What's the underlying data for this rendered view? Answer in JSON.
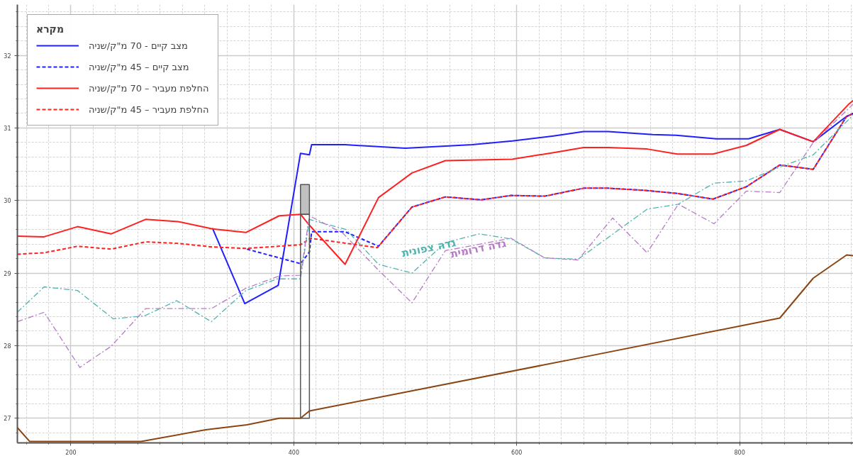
{
  "chart_data": {
    "type": "line",
    "xlim": [
      152,
      902
    ],
    "ylim": [
      26.66,
      32.7
    ],
    "xticks": [
      200,
      400,
      600,
      800
    ],
    "yticks": [
      27,
      28,
      29,
      30,
      31,
      32
    ],
    "grid": true,
    "legend": "top left",
    "legend_title": "מקרא",
    "series": [
      {
        "name": "מצב קיים - 70 מ\"ק/שניה",
        "color": "#2020ff",
        "line_style": "solid",
        "x": [
          327,
          356,
          386,
          406,
          414,
          416,
          446,
          500,
          560,
          596,
          633,
          660,
          682,
          722,
          743,
          779,
          808,
          836,
          866,
          896,
          902
        ],
        "values": [
          29.62,
          28.58,
          28.83,
          30.65,
          30.63,
          30.77,
          30.77,
          30.72,
          30.77,
          30.82,
          30.89,
          30.95,
          30.95,
          30.91,
          30.9,
          30.85,
          30.85,
          30.98,
          30.81,
          31.16,
          31.2
        ]
      },
      {
        "name": "מצב קיים – 45 מ\"ק/שניה",
        "color": "#2020ff",
        "line_style": "dashed",
        "x": [
          358,
          406,
          414,
          416,
          446,
          476,
          506,
          536,
          568,
          595,
          625,
          660,
          682,
          715,
          743,
          776,
          806,
          836,
          866,
          896,
          902
        ],
        "values": [
          29.33,
          29.13,
          29.29,
          29.57,
          29.57,
          29.37,
          29.91,
          30.05,
          30.01,
          30.07,
          30.06,
          30.17,
          30.17,
          30.14,
          30.1,
          30.02,
          30.19,
          30.49,
          30.43,
          31.16,
          31.2
        ]
      },
      {
        "name": "החלפת מעביר – 70 מ\"ק/שניה",
        "color": "#ff2020",
        "line_style": "solid",
        "x": [
          152,
          176,
          206,
          236,
          267,
          296,
          327,
          357,
          387,
          406,
          414,
          446,
          476,
          506,
          536,
          596,
          633,
          660,
          682,
          717,
          744,
          776,
          806,
          836,
          866,
          898,
          902
        ],
        "values": [
          29.51,
          29.5,
          29.64,
          29.54,
          29.74,
          29.71,
          29.61,
          29.56,
          29.79,
          29.81,
          29.66,
          29.12,
          30.04,
          30.38,
          30.55,
          30.57,
          30.66,
          30.73,
          30.73,
          30.71,
          30.64,
          30.64,
          30.76,
          30.98,
          30.81,
          31.33,
          31.38
        ]
      },
      {
        "name": "החלפת מעביר – 45 מ\"ק/שניה",
        "color": "#ff2020",
        "line_style": "dashed",
        "x": [
          152,
          176,
          206,
          236,
          267,
          296,
          327,
          357,
          406,
          415,
          475,
          506,
          536,
          568,
          595,
          625,
          660,
          682,
          715,
          743,
          776,
          806,
          836,
          866,
          896,
          902
        ],
        "values": [
          29.26,
          29.28,
          29.37,
          29.33,
          29.43,
          29.41,
          29.36,
          29.34,
          29.39,
          29.48,
          29.35,
          29.91,
          30.05,
          30.01,
          30.07,
          30.06,
          30.17,
          30.17,
          30.14,
          30.1,
          30.02,
          30.19,
          30.49,
          30.43,
          31.16,
          31.2
        ]
      },
      {
        "name": "גדה צפונית",
        "color": "#4fb3b0",
        "line_style": "dashdot",
        "x": [
          152,
          176,
          206,
          238,
          266,
          295,
          326,
          357,
          385,
          406,
          414,
          447,
          476,
          506,
          536,
          566,
          595,
          625,
          655,
          717,
          745,
          777,
          806,
          836,
          866,
          902
        ],
        "values": [
          28.46,
          28.81,
          28.76,
          28.37,
          28.41,
          28.62,
          28.33,
          28.76,
          28.92,
          28.92,
          29.74,
          29.6,
          29.12,
          29.0,
          29.42,
          29.54,
          29.47,
          29.21,
          29.19,
          29.88,
          29.95,
          30.24,
          30.27,
          30.46,
          30.63,
          31.18
        ]
      },
      {
        "name": "גדה דרומית",
        "color": "#b77ac8",
        "line_style": "dashdot",
        "x": [
          152,
          176,
          208,
          236,
          267,
          326,
          357,
          387,
          406,
          414,
          444,
          476,
          506,
          536,
          595,
          625,
          655,
          686,
          717,
          745,
          777,
          806,
          836,
          866,
          902
        ],
        "values": [
          28.33,
          28.46,
          27.7,
          27.99,
          28.51,
          28.51,
          28.79,
          28.96,
          28.97,
          29.79,
          29.55,
          29.04,
          28.59,
          29.31,
          29.48,
          29.21,
          29.18,
          29.76,
          29.28,
          29.95,
          29.68,
          30.13,
          30.11,
          30.8,
          31.33
        ]
      },
      {
        "color": "#8b4513",
        "line_style": "solid",
        "x": [
          152,
          163,
          263,
          321,
          358,
          387,
          406,
          414,
          646,
          836,
          866,
          896,
          902
        ],
        "values": [
          26.87,
          26.68,
          26.68,
          26.84,
          26.91,
          27.0,
          27.0,
          27.1,
          27.8,
          28.38,
          28.93,
          29.25,
          29.24
        ]
      },
      {
        "type": "bar",
        "color": "#c0c0c0",
        "x": [
          410
        ],
        "base": [
          29.81
        ],
        "values": [
          0.41
        ]
      },
      {
        "type": "bar",
        "x": [
          410
        ],
        "base": [
          27.0
        ],
        "values": [
          2.81
        ]
      }
    ]
  }
}
